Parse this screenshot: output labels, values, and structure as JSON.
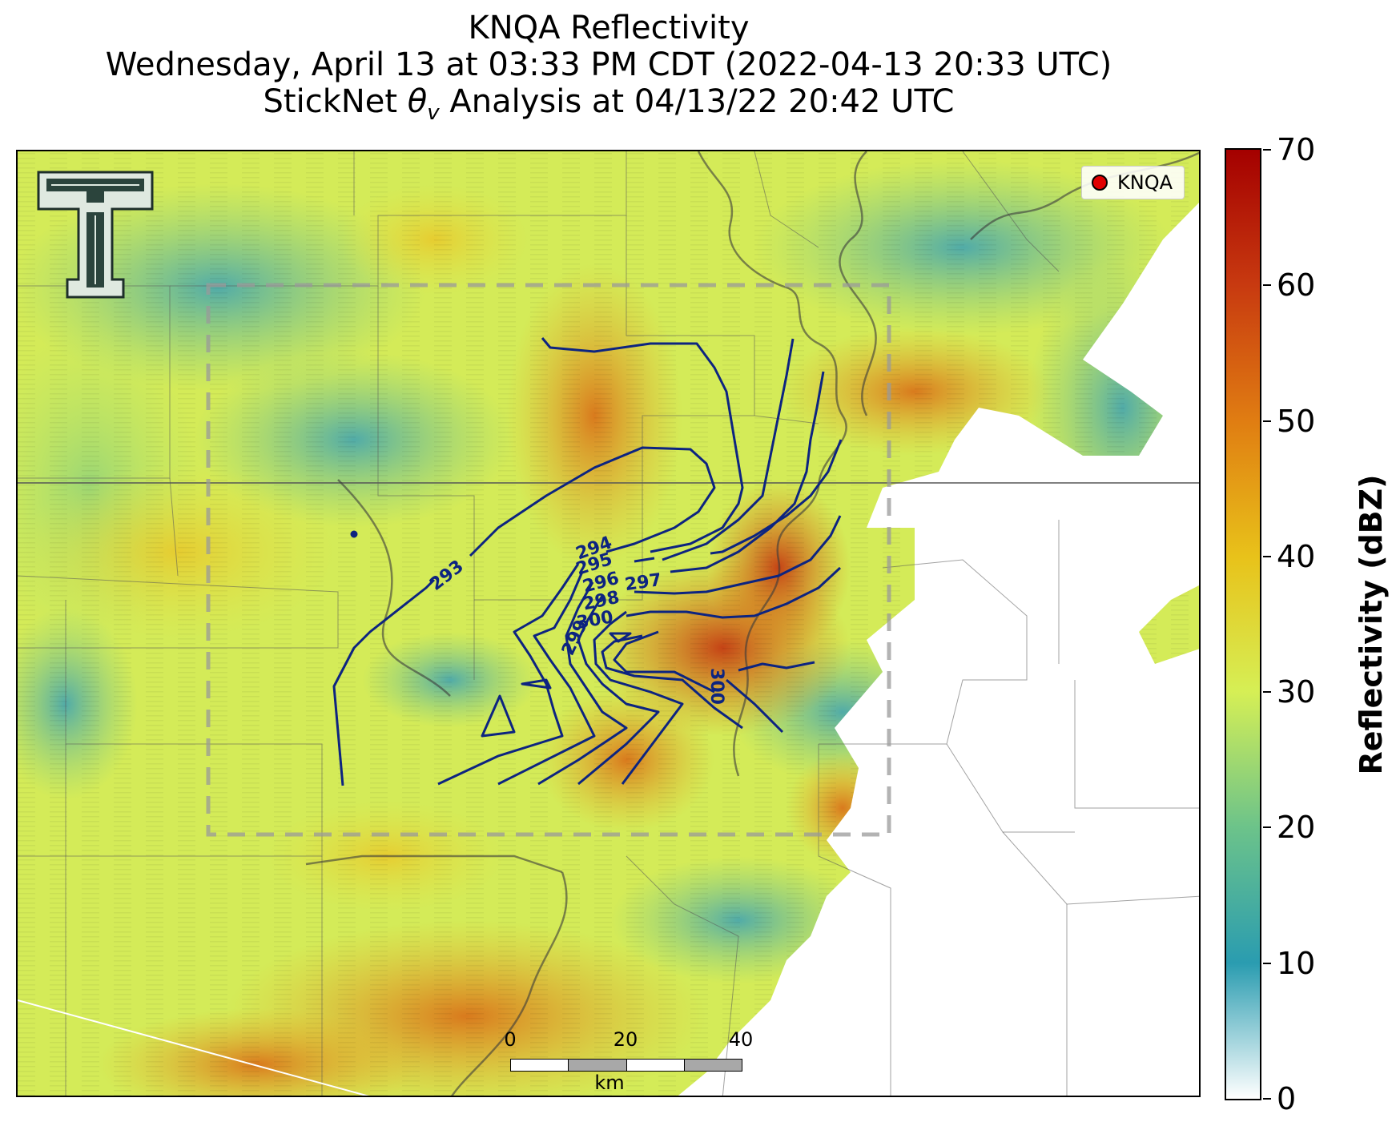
{
  "title": {
    "line1": "KNQA Reflectivity",
    "line2": "Wednesday, April 13 at 03:33 PM CDT (2022-04-13 20:33 UTC)",
    "line3": "StickNet θv Analysis at 04/13/22 20:42 UTC"
  },
  "legend": {
    "label": "KNQA",
    "marker_color": "#e00000"
  },
  "colorbar": {
    "label": "Reflectivity (dBZ)",
    "ticks": [
      "70",
      "60",
      "50",
      "40",
      "30",
      "20",
      "10",
      "0"
    ],
    "range": [
      0,
      70
    ],
    "colors": [
      "#ffffff",
      "#2a9cb0",
      "#6cc38a",
      "#d6ef55",
      "#e8c21a",
      "#e07d12",
      "#c83a10",
      "#a40000"
    ]
  },
  "contours": {
    "color": "#0d2480",
    "labels": [
      "293",
      "294",
      "295",
      "296",
      "297",
      "298",
      "300",
      "299",
      "300"
    ]
  },
  "scalebar": {
    "ticks": [
      "0",
      "20",
      "40"
    ],
    "unit": "km"
  },
  "logo": {
    "name": "Texas Tech Double T",
    "icon": "double-t-logo-icon"
  }
}
